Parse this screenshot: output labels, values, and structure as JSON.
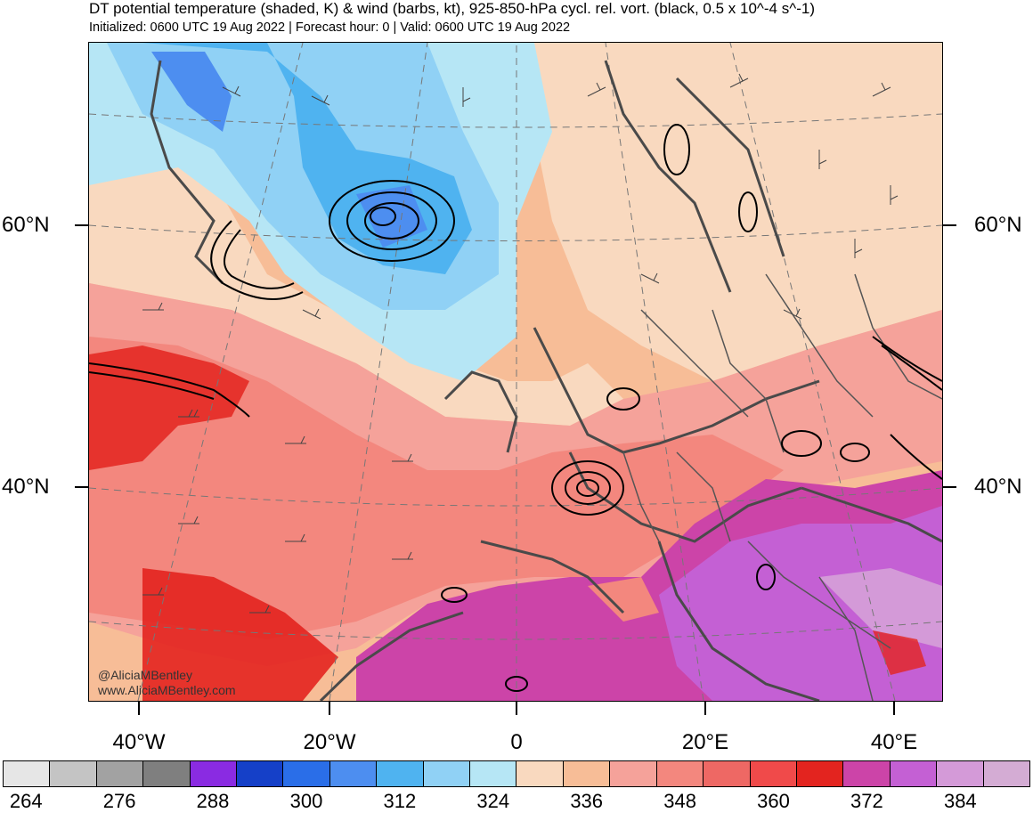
{
  "title": "DT potential temperature (shaded, K) & wind (barbs, kt), 925-850-hPa cycl. rel. vort. (black, 0.5 x 10^-4 s^-1)",
  "subtitle": "Initialized: 0600 UTC 19 Aug 2022 | Forecast hour: 0 | Valid: 0600 UTC 19 Aug 2022",
  "credit": {
    "handle": "@AliciaMBentley",
    "website": "www.AliciaMBentley.com"
  },
  "lat_labels": {
    "lat60_left": "60°N",
    "lat40_left": "40°N",
    "lat60_right": "60°N",
    "lat40_right": "40°N"
  },
  "lon_labels": {
    "w40": "40°W",
    "w20": "20°W",
    "zero": "0",
    "e20": "20°E",
    "e40": "40°E"
  },
  "colorbar": {
    "colors": [
      "#e6e6e6",
      "#c4c4c4",
      "#a2a2a2",
      "#7f7f7f",
      "#8a2be2",
      "#1540c8",
      "#2a6ee8",
      "#4d8ef0",
      "#4fb3f0",
      "#90d1f5",
      "#b6e6f5",
      "#f9d9bf",
      "#f7bd97",
      "#f5a29a",
      "#f3877e",
      "#ee6864",
      "#f04a4a",
      "#e3241f",
      "#cc44a8",
      "#c460d4",
      "#d49ad8",
      "#d4acd4"
    ],
    "labels": [
      "264",
      "276",
      "288",
      "300",
      "312",
      "324",
      "336",
      "348",
      "360",
      "372",
      "384"
    ]
  },
  "map_colors": {
    "cold_center": "#4d8ef0",
    "cool": "#90d1f5",
    "pale": "#b6e6f5",
    "peach": "#f9d9bf",
    "salmon": "#f7bd97",
    "pink": "#f5a29a",
    "red": "#f3877e",
    "deep_red": "#e3241f",
    "magenta": "#cc44a8",
    "violet": "#c460d4",
    "coast": "#4a4a4a",
    "contour": "#000000"
  }
}
